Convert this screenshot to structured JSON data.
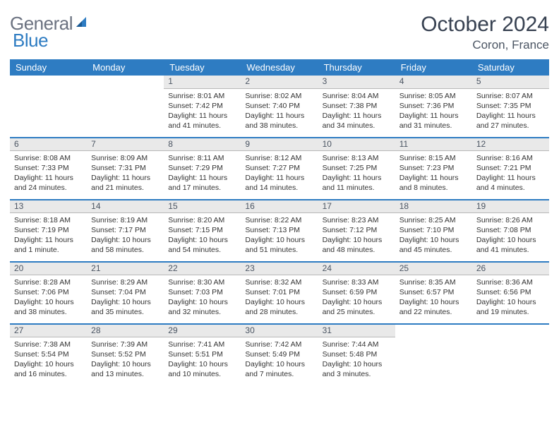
{
  "logo": {
    "text1": "General",
    "text2": "Blue"
  },
  "title": "October 2024",
  "location": "Coron, France",
  "colors": {
    "header_bg": "#2e7cc2",
    "header_text": "#ffffff",
    "daynum_bg": "#e9e9e9",
    "row_border": "#2e7cc2"
  },
  "weekdays": [
    "Sunday",
    "Monday",
    "Tuesday",
    "Wednesday",
    "Thursday",
    "Friday",
    "Saturday"
  ],
  "weeks": [
    {
      "days": [
        null,
        null,
        {
          "n": "1",
          "sr": "Sunrise: 8:01 AM",
          "ss": "Sunset: 7:42 PM",
          "dl": "Daylight: 11 hours and 41 minutes."
        },
        {
          "n": "2",
          "sr": "Sunrise: 8:02 AM",
          "ss": "Sunset: 7:40 PM",
          "dl": "Daylight: 11 hours and 38 minutes."
        },
        {
          "n": "3",
          "sr": "Sunrise: 8:04 AM",
          "ss": "Sunset: 7:38 PM",
          "dl": "Daylight: 11 hours and 34 minutes."
        },
        {
          "n": "4",
          "sr": "Sunrise: 8:05 AM",
          "ss": "Sunset: 7:36 PM",
          "dl": "Daylight: 11 hours and 31 minutes."
        },
        {
          "n": "5",
          "sr": "Sunrise: 8:07 AM",
          "ss": "Sunset: 7:35 PM",
          "dl": "Daylight: 11 hours and 27 minutes."
        }
      ]
    },
    {
      "days": [
        {
          "n": "6",
          "sr": "Sunrise: 8:08 AM",
          "ss": "Sunset: 7:33 PM",
          "dl": "Daylight: 11 hours and 24 minutes."
        },
        {
          "n": "7",
          "sr": "Sunrise: 8:09 AM",
          "ss": "Sunset: 7:31 PM",
          "dl": "Daylight: 11 hours and 21 minutes."
        },
        {
          "n": "8",
          "sr": "Sunrise: 8:11 AM",
          "ss": "Sunset: 7:29 PM",
          "dl": "Daylight: 11 hours and 17 minutes."
        },
        {
          "n": "9",
          "sr": "Sunrise: 8:12 AM",
          "ss": "Sunset: 7:27 PM",
          "dl": "Daylight: 11 hours and 14 minutes."
        },
        {
          "n": "10",
          "sr": "Sunrise: 8:13 AM",
          "ss": "Sunset: 7:25 PM",
          "dl": "Daylight: 11 hours and 11 minutes."
        },
        {
          "n": "11",
          "sr": "Sunrise: 8:15 AM",
          "ss": "Sunset: 7:23 PM",
          "dl": "Daylight: 11 hours and 8 minutes."
        },
        {
          "n": "12",
          "sr": "Sunrise: 8:16 AM",
          "ss": "Sunset: 7:21 PM",
          "dl": "Daylight: 11 hours and 4 minutes."
        }
      ]
    },
    {
      "days": [
        {
          "n": "13",
          "sr": "Sunrise: 8:18 AM",
          "ss": "Sunset: 7:19 PM",
          "dl": "Daylight: 11 hours and 1 minute."
        },
        {
          "n": "14",
          "sr": "Sunrise: 8:19 AM",
          "ss": "Sunset: 7:17 PM",
          "dl": "Daylight: 10 hours and 58 minutes."
        },
        {
          "n": "15",
          "sr": "Sunrise: 8:20 AM",
          "ss": "Sunset: 7:15 PM",
          "dl": "Daylight: 10 hours and 54 minutes."
        },
        {
          "n": "16",
          "sr": "Sunrise: 8:22 AM",
          "ss": "Sunset: 7:13 PM",
          "dl": "Daylight: 10 hours and 51 minutes."
        },
        {
          "n": "17",
          "sr": "Sunrise: 8:23 AM",
          "ss": "Sunset: 7:12 PM",
          "dl": "Daylight: 10 hours and 48 minutes."
        },
        {
          "n": "18",
          "sr": "Sunrise: 8:25 AM",
          "ss": "Sunset: 7:10 PM",
          "dl": "Daylight: 10 hours and 45 minutes."
        },
        {
          "n": "19",
          "sr": "Sunrise: 8:26 AM",
          "ss": "Sunset: 7:08 PM",
          "dl": "Daylight: 10 hours and 41 minutes."
        }
      ]
    },
    {
      "days": [
        {
          "n": "20",
          "sr": "Sunrise: 8:28 AM",
          "ss": "Sunset: 7:06 PM",
          "dl": "Daylight: 10 hours and 38 minutes."
        },
        {
          "n": "21",
          "sr": "Sunrise: 8:29 AM",
          "ss": "Sunset: 7:04 PM",
          "dl": "Daylight: 10 hours and 35 minutes."
        },
        {
          "n": "22",
          "sr": "Sunrise: 8:30 AM",
          "ss": "Sunset: 7:03 PM",
          "dl": "Daylight: 10 hours and 32 minutes."
        },
        {
          "n": "23",
          "sr": "Sunrise: 8:32 AM",
          "ss": "Sunset: 7:01 PM",
          "dl": "Daylight: 10 hours and 28 minutes."
        },
        {
          "n": "24",
          "sr": "Sunrise: 8:33 AM",
          "ss": "Sunset: 6:59 PM",
          "dl": "Daylight: 10 hours and 25 minutes."
        },
        {
          "n": "25",
          "sr": "Sunrise: 8:35 AM",
          "ss": "Sunset: 6:57 PM",
          "dl": "Daylight: 10 hours and 22 minutes."
        },
        {
          "n": "26",
          "sr": "Sunrise: 8:36 AM",
          "ss": "Sunset: 6:56 PM",
          "dl": "Daylight: 10 hours and 19 minutes."
        }
      ]
    },
    {
      "days": [
        {
          "n": "27",
          "sr": "Sunrise: 7:38 AM",
          "ss": "Sunset: 5:54 PM",
          "dl": "Daylight: 10 hours and 16 minutes."
        },
        {
          "n": "28",
          "sr": "Sunrise: 7:39 AM",
          "ss": "Sunset: 5:52 PM",
          "dl": "Daylight: 10 hours and 13 minutes."
        },
        {
          "n": "29",
          "sr": "Sunrise: 7:41 AM",
          "ss": "Sunset: 5:51 PM",
          "dl": "Daylight: 10 hours and 10 minutes."
        },
        {
          "n": "30",
          "sr": "Sunrise: 7:42 AM",
          "ss": "Sunset: 5:49 PM",
          "dl": "Daylight: 10 hours and 7 minutes."
        },
        {
          "n": "31",
          "sr": "Sunrise: 7:44 AM",
          "ss": "Sunset: 5:48 PM",
          "dl": "Daylight: 10 hours and 3 minutes."
        },
        null,
        null
      ]
    }
  ]
}
